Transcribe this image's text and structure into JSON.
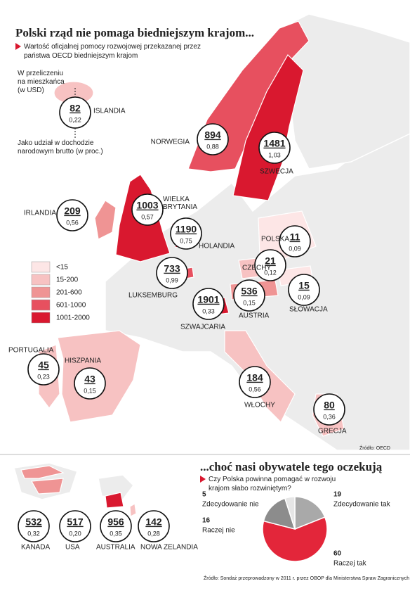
{
  "header": {
    "title": "Polski rząd nie pomaga biedniejszym krajom...",
    "subtitle": "Wartość oficjalnej pomocy rozwojowej przekazanej przez państwa OECD biedniejszym krajom"
  },
  "key": {
    "per_capita_note": "W przeliczeniu na mieszkańca (w USD)",
    "share_note": "Jako udział w dochodzie narodowym brutto (w proc.)"
  },
  "legend": [
    {
      "label": "<15",
      "color": "#fde6e6"
    },
    {
      "label": "15-200",
      "color": "#f7c2c2"
    },
    {
      "label": "201-600",
      "color": "#ef9494"
    },
    {
      "label": "601-1000",
      "color": "#e7505f"
    },
    {
      "label": "1001-2000",
      "color": "#d9182f"
    }
  ],
  "europe": [
    {
      "name": "ISLANDIA",
      "per_capita": 82,
      "share": {
        "value": 0.22,
        "label": "0,22"
      },
      "color": "#f7c2c2"
    },
    {
      "name": "NORWEGIA",
      "per_capita": 894,
      "share": {
        "value": 0.88,
        "label": "0,88"
      },
      "color": "#e7505f"
    },
    {
      "name": "SZWECJA",
      "per_capita": 1481,
      "share": {
        "value": 1.03,
        "label": "1,03"
      },
      "color": "#d9182f"
    },
    {
      "name": "IRLANDIA",
      "per_capita": 209,
      "share": {
        "value": 0.56,
        "label": "0,56"
      },
      "color": "#ef9494"
    },
    {
      "name": "WIELKA BRYTANIA",
      "per_capita": 1003,
      "share": {
        "value": 0.57,
        "label": "0,57"
      },
      "color": "#d9182f"
    },
    {
      "name": "HOLANDIA",
      "per_capita": 1190,
      "share": {
        "value": 0.75,
        "label": "0,75"
      },
      "color": "#d9182f"
    },
    {
      "name": "LUKSEMBURG",
      "per_capita": 733,
      "share": {
        "value": 0.99,
        "label": "0,99"
      },
      "color": "#e7505f"
    },
    {
      "name": "SZWAJCARIA",
      "per_capita": 1901,
      "share": {
        "value": 0.33,
        "label": "0,33"
      },
      "color": "#d9182f"
    },
    {
      "name": "POLSKA",
      "per_capita": 11,
      "share": {
        "value": 0.09,
        "label": "0,09"
      },
      "color": "#fde6e6"
    },
    {
      "name": "CZECHY",
      "per_capita": 21,
      "share": {
        "value": 0.12,
        "label": "0,12"
      },
      "color": "#f7c2c2"
    },
    {
      "name": "AUSTRIA",
      "per_capita": 536,
      "share": {
        "value": 0.15,
        "label": "0,15"
      },
      "color": "#ef9494"
    },
    {
      "name": "SŁOWACJA",
      "per_capita": 15,
      "share": {
        "value": 0.09,
        "label": "0,09"
      },
      "color": "#fde6e6"
    },
    {
      "name": "PORTUGALIA",
      "per_capita": 45,
      "share": {
        "value": 0.23,
        "label": "0,23"
      },
      "color": "#f7c2c2"
    },
    {
      "name": "HISZPANIA",
      "per_capita": 43,
      "share": {
        "value": 0.15,
        "label": "0,15"
      },
      "color": "#f7c2c2"
    },
    {
      "name": "WŁOCHY",
      "per_capita": 184,
      "share": {
        "value": 0.56,
        "label": "0,56"
      },
      "color": "#f7c2c2"
    },
    {
      "name": "GRECJA",
      "per_capita": 80,
      "share": {
        "value": 0.36,
        "label": "0,36"
      },
      "color": "#f7c2c2"
    }
  ],
  "world": [
    {
      "name": "KANADA",
      "per_capita": 532,
      "share": {
        "value": 0.32,
        "label": "0,32"
      }
    },
    {
      "name": "USA",
      "per_capita": 517,
      "share": {
        "value": 0.2,
        "label": "0,20"
      }
    },
    {
      "name": "AUSTRALIA",
      "per_capita": 956,
      "share": {
        "value": 0.35,
        "label": "0,35"
      }
    },
    {
      "name": "NOWA ZELANDIA",
      "per_capita": 142,
      "share": {
        "value": 0.28,
        "label": "0,28"
      }
    }
  ],
  "map_source": "Źródło: OECD",
  "chart_data": {
    "type": "pie",
    "title": "...choć nasi obywatele tego oczekują",
    "subtitle": "Czy Polska powinna pomagać w rozwoju krajom słabo rozwiniętym?",
    "categories": [
      "Zdecydowanie nie",
      "Zdecydowanie tak",
      "Raczej nie",
      "Raczej tak"
    ],
    "values": [
      5,
      19,
      16,
      60
    ],
    "colors": [
      "#e6e6e6",
      "#a9a9a9",
      "#8c8c8c",
      "#e3263a"
    ]
  },
  "footer": {
    "source": "Źródło: Sondaż przeprowadzony w 2011 r. przez OBOP dla Ministerstwa Spraw Zagranicznych"
  }
}
